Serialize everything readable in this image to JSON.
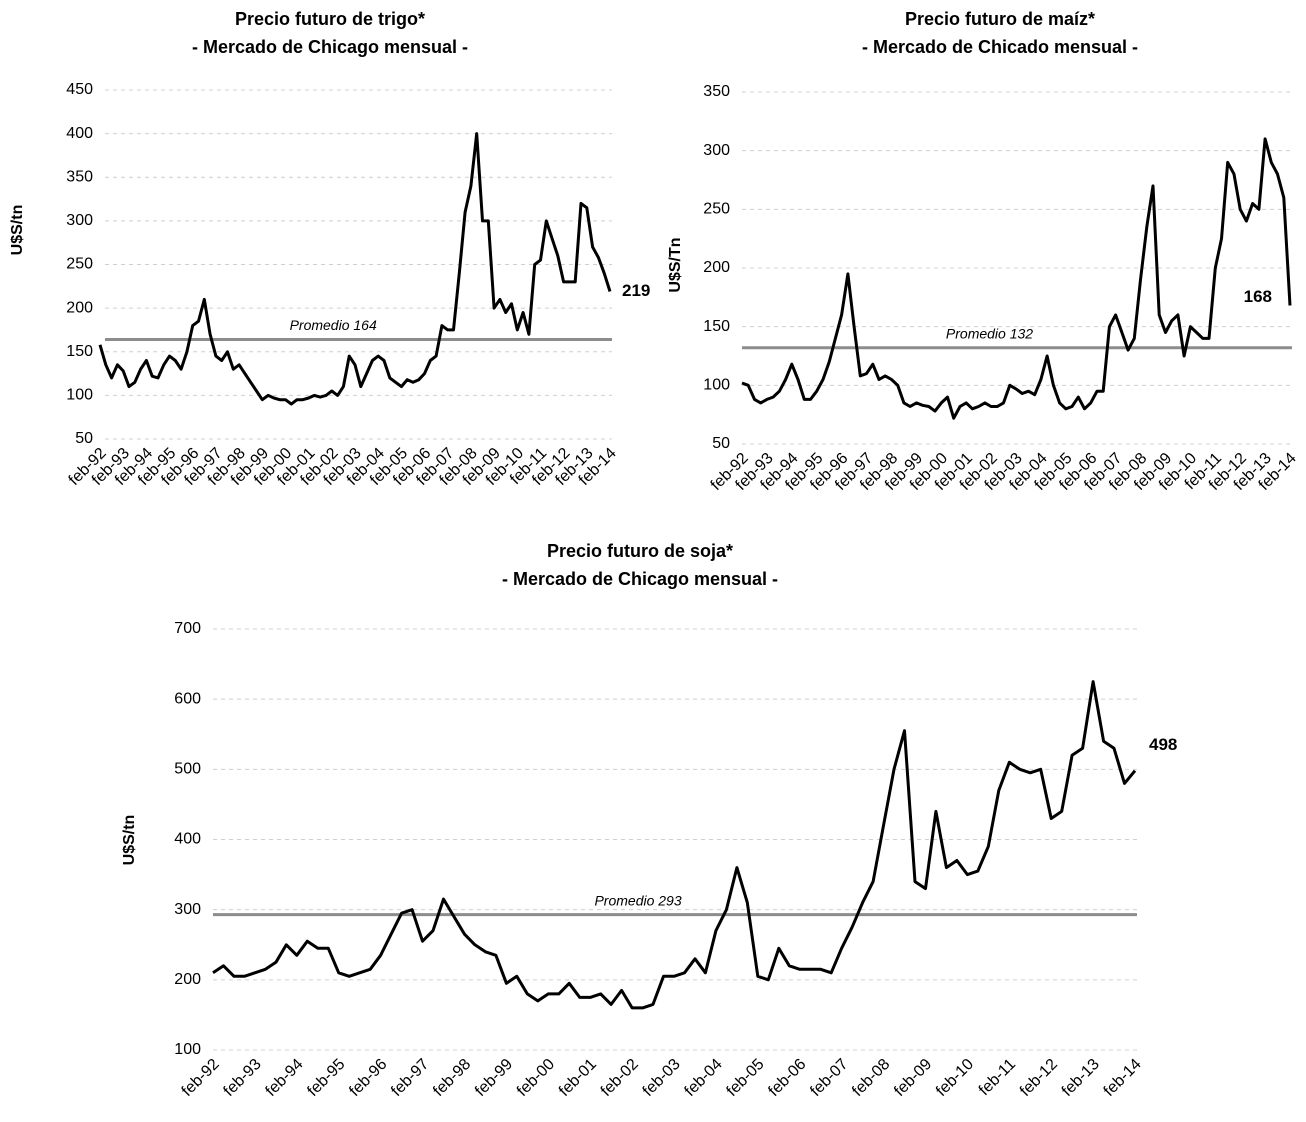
{
  "chart_data": [
    {
      "type": "line",
      "title": "Precio futuro de trigo*",
      "subtitle": "- Mercado de Chicago mensual -",
      "ylabel": "U$S/tn",
      "categories": [
        "feb-92",
        null,
        null,
        null,
        "feb-93",
        null,
        null,
        null,
        "feb-94",
        null,
        null,
        null,
        "feb-95",
        null,
        null,
        null,
        "feb-96",
        null,
        null,
        null,
        "feb-97",
        null,
        null,
        null,
        "feb-98",
        null,
        null,
        null,
        "feb-99",
        null,
        null,
        null,
        "feb-00",
        null,
        null,
        null,
        "feb-01",
        null,
        null,
        null,
        "feb-02",
        null,
        null,
        null,
        "feb-03",
        null,
        null,
        null,
        "feb-04",
        null,
        null,
        null,
        "feb-05",
        null,
        null,
        null,
        "feb-06",
        null,
        null,
        null,
        "feb-07",
        null,
        null,
        null,
        "feb-08",
        null,
        null,
        null,
        "feb-09",
        null,
        null,
        null,
        "feb-10",
        null,
        null,
        null,
        "feb-11",
        null,
        null,
        null,
        "feb-12",
        null,
        null,
        null,
        "feb-13",
        null,
        null,
        null,
        "feb-14"
      ],
      "values": [
        158,
        135,
        120,
        135,
        128,
        110,
        115,
        130,
        140,
        122,
        120,
        135,
        145,
        140,
        130,
        150,
        180,
        185,
        210,
        170,
        145,
        140,
        150,
        130,
        135,
        125,
        115,
        105,
        95,
        100,
        97,
        95,
        95,
        90,
        95,
        95,
        97,
        100,
        98,
        100,
        105,
        100,
        110,
        145,
        135,
        110,
        125,
        140,
        145,
        140,
        120,
        115,
        110,
        118,
        115,
        118,
        125,
        140,
        145,
        180,
        175,
        175,
        240,
        310,
        340,
        400,
        300,
        300,
        200,
        210,
        195,
        205,
        175,
        195,
        170,
        250,
        255,
        300,
        280,
        260,
        230,
        230,
        230,
        320,
        315,
        270,
        258,
        240,
        219
      ],
      "color": "#000000",
      "mean_line": {
        "value": 164,
        "label": "Promedio 164"
      },
      "mean_color": "#8c8c8c",
      "ylim": [
        50,
        450
      ],
      "yticks": [
        50,
        100,
        150,
        200,
        250,
        300,
        350,
        400,
        450
      ],
      "grid": true
    },
    {
      "type": "line",
      "title": "Precio futuro de maíz*",
      "subtitle": "- Mercado de Chicado mensual -",
      "ylabel": "U$S/Tn",
      "categories": [
        "feb-92",
        null,
        null,
        null,
        "feb-93",
        null,
        null,
        null,
        "feb-94",
        null,
        null,
        null,
        "feb-95",
        null,
        null,
        null,
        "feb-96",
        null,
        null,
        null,
        "feb-97",
        null,
        null,
        null,
        "feb-98",
        null,
        null,
        null,
        "feb-99",
        null,
        null,
        null,
        "feb-00",
        null,
        null,
        null,
        "feb-01",
        null,
        null,
        null,
        "feb-02",
        null,
        null,
        null,
        "feb-03",
        null,
        null,
        null,
        "feb-04",
        null,
        null,
        null,
        "feb-05",
        null,
        null,
        null,
        "feb-06",
        null,
        null,
        null,
        "feb-07",
        null,
        null,
        null,
        "feb-08",
        null,
        null,
        null,
        "feb-09",
        null,
        null,
        null,
        "feb-10",
        null,
        null,
        null,
        "feb-11",
        null,
        null,
        null,
        "feb-12",
        null,
        null,
        null,
        "feb-13",
        null,
        null,
        null,
        "feb-14"
      ],
      "values": [
        102,
        100,
        88,
        85,
        88,
        90,
        95,
        105,
        118,
        105,
        88,
        88,
        95,
        105,
        120,
        140,
        160,
        195,
        150,
        108,
        110,
        118,
        105,
        108,
        105,
        100,
        85,
        82,
        85,
        83,
        82,
        78,
        85,
        90,
        72,
        82,
        85,
        80,
        82,
        85,
        82,
        82,
        85,
        100,
        97,
        93,
        95,
        92,
        105,
        125,
        100,
        85,
        80,
        82,
        90,
        80,
        85,
        95,
        95,
        150,
        160,
        145,
        130,
        140,
        190,
        235,
        270,
        160,
        145,
        155,
        160,
        125,
        150,
        145,
        140,
        140,
        200,
        225,
        290,
        280,
        250,
        240,
        255,
        250,
        310,
        290,
        280,
        260,
        168
      ],
      "color": "#000000",
      "mean_line": {
        "value": 132,
        "label": "Promedio 132"
      },
      "mean_color": "#8c8c8c",
      "ylim": [
        50,
        350
      ],
      "yticks": [
        50,
        100,
        150,
        200,
        250,
        300,
        350
      ],
      "grid": true
    },
    {
      "type": "line",
      "title": "Precio futuro de soja*",
      "subtitle": "- Mercado de Chicago mensual -",
      "ylabel": "U$S/tn",
      "categories": [
        "feb-92",
        null,
        null,
        null,
        "feb-93",
        null,
        null,
        null,
        "feb-94",
        null,
        null,
        null,
        "feb-95",
        null,
        null,
        null,
        "feb-96",
        null,
        null,
        null,
        "feb-97",
        null,
        null,
        null,
        "feb-98",
        null,
        null,
        null,
        "feb-99",
        null,
        null,
        null,
        "feb-00",
        null,
        null,
        null,
        "feb-01",
        null,
        null,
        null,
        "feb-02",
        null,
        null,
        null,
        "feb-03",
        null,
        null,
        null,
        "feb-04",
        null,
        null,
        null,
        "feb-05",
        null,
        null,
        null,
        "feb-06",
        null,
        null,
        null,
        "feb-07",
        null,
        null,
        null,
        "feb-08",
        null,
        null,
        null,
        "feb-09",
        null,
        null,
        null,
        "feb-10",
        null,
        null,
        null,
        "feb-11",
        null,
        null,
        null,
        "feb-12",
        null,
        null,
        null,
        "feb-13",
        null,
        null,
        null,
        "feb-14"
      ],
      "values": [
        210,
        220,
        205,
        205,
        210,
        215,
        225,
        250,
        235,
        255,
        245,
        245,
        210,
        205,
        210,
        215,
        235,
        265,
        295,
        300,
        255,
        270,
        315,
        290,
        265,
        250,
        240,
        235,
        195,
        205,
        180,
        170,
        180,
        180,
        195,
        175,
        175,
        180,
        165,
        185,
        160,
        160,
        165,
        205,
        205,
        210,
        230,
        210,
        270,
        300,
        360,
        310,
        205,
        200,
        245,
        220,
        215,
        215,
        215,
        210,
        245,
        275,
        310,
        340,
        420,
        500,
        555,
        340,
        330,
        440,
        360,
        370,
        350,
        355,
        390,
        470,
        510,
        500,
        495,
        500,
        430,
        440,
        520,
        530,
        625,
        540,
        530,
        480,
        498
      ],
      "color": "#000000",
      "mean_line": {
        "value": 293,
        "label": "Promedio 293"
      },
      "mean_color": "#8c8c8c",
      "ylim": [
        100,
        700
      ],
      "yticks": [
        100,
        200,
        300,
        400,
        500,
        600,
        700
      ],
      "grid": true
    }
  ]
}
